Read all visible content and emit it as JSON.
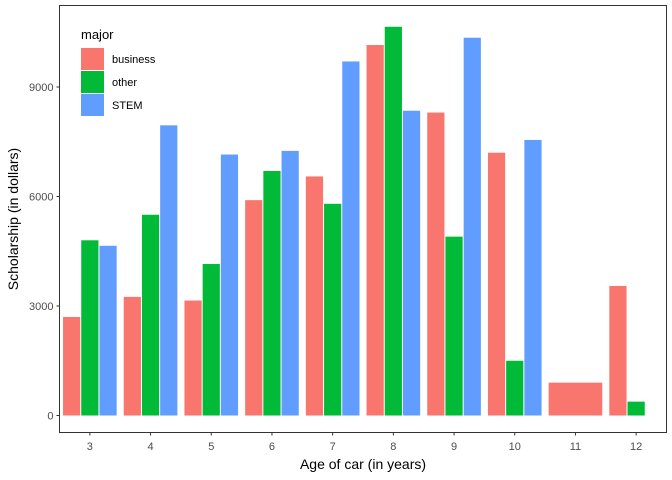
{
  "chart_data": {
    "type": "bar",
    "xlabel": "Age of car (in years)",
    "ylabel": "Scholarship (in dollars)",
    "categories": [
      "3",
      "4",
      "5",
      "6",
      "7",
      "8",
      "9",
      "10",
      "11",
      "12"
    ],
    "yticks": [
      "0",
      "3000",
      "6000",
      "9000"
    ],
    "ylim": [
      0,
      11000
    ],
    "grid": false,
    "legend": {
      "title": "major",
      "placement": "top-left"
    },
    "series": [
      {
        "name": "business",
        "color": "#F8766D",
        "values": [
          2700,
          3250,
          3150,
          5900,
          6550,
          10150,
          8300,
          7200,
          900,
          3550
        ]
      },
      {
        "name": "other",
        "color": "#00BA38",
        "values": [
          4800,
          5500,
          4150,
          6700,
          5800,
          10650,
          4900,
          1500,
          null,
          380
        ]
      },
      {
        "name": "STEM",
        "color": "#619CFF",
        "values": [
          4650,
          7950,
          7150,
          7250,
          9700,
          8350,
          10350,
          7550,
          null,
          null
        ]
      }
    ]
  }
}
